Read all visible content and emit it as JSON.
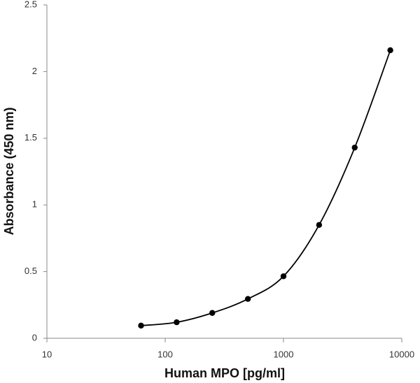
{
  "chart_data": {
    "type": "line",
    "xlabel": "Human MPO [pg/ml]",
    "ylabel": "Absorbance (450 nm)",
    "x": [
      62.5,
      125,
      250,
      500,
      1000,
      2000,
      4000,
      8000
    ],
    "series": [
      {
        "color": "#000000",
        "values": [
          0.095,
          0.12,
          0.19,
          0.295,
          0.465,
          0.85,
          1.43,
          2.16
        ]
      }
    ],
    "xscale": "log",
    "xlim": [
      10,
      10000
    ],
    "xticks": [
      10,
      100,
      1000,
      10000
    ],
    "ylim": [
      0,
      2.5
    ],
    "yticks": [
      0,
      0.5,
      1,
      1.5,
      2,
      2.5
    ],
    "smooth": true,
    "markers": true
  }
}
